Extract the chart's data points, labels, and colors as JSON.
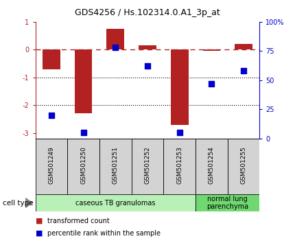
{
  "title": "GDS4256 / Hs.102314.0.A1_3p_at",
  "samples": [
    "GSM501249",
    "GSM501250",
    "GSM501251",
    "GSM501252",
    "GSM501253",
    "GSM501254",
    "GSM501255"
  ],
  "red_values": [
    -0.7,
    -2.3,
    0.75,
    0.15,
    -2.7,
    -0.05,
    0.2
  ],
  "blue_values": [
    20,
    5,
    78,
    62,
    5,
    47,
    58
  ],
  "ylim_left": [
    -3.2,
    1.0
  ],
  "ylim_right": [
    0,
    100
  ],
  "yticks_left": [
    -3,
    -2,
    -1,
    0,
    1
  ],
  "yticks_right": [
    0,
    25,
    50,
    75,
    100
  ],
  "ytick_labels_right": [
    "0",
    "25",
    "50",
    "75",
    "100%"
  ],
  "hlines_dotted": [
    -1,
    -2
  ],
  "hline0_dashed": 0,
  "bar_color": "#B22222",
  "dot_color": "#0000CD",
  "bg_color": "#FFFFFF",
  "sample_box_color": "#D3D3D3",
  "cell_type_groups": [
    {
      "label": "caseous TB granulomas",
      "indices": [
        0,
        1,
        2,
        3,
        4
      ],
      "color": "#B8F0B8"
    },
    {
      "label": "normal lung\nparenchyma",
      "indices": [
        5,
        6
      ],
      "color": "#70D870"
    }
  ],
  "legend_red": "transformed count",
  "legend_blue": "percentile rank within the sample",
  "cell_type_label": "cell type",
  "bar_width": 0.55,
  "dot_size": 40,
  "title_fontsize": 9,
  "tick_fontsize": 7,
  "label_fontsize": 6.5,
  "legend_fontsize": 7,
  "ct_fontsize": 7
}
